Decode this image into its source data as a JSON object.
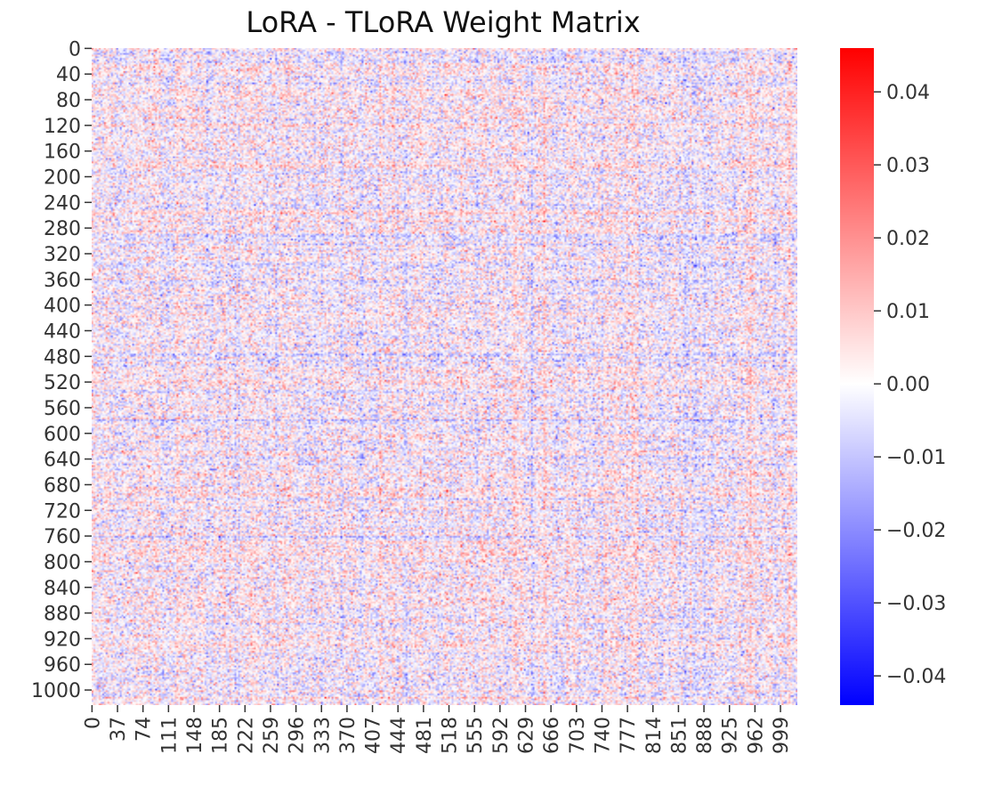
{
  "chart_data": {
    "type": "heatmap",
    "title": "LoRA - TLoRA Weight Matrix",
    "xlabel": "",
    "ylabel": "",
    "rows": 1024,
    "cols": 1024,
    "value_description": "dense noise-like matrix of small weight differences, mostly within about -0.02 to 0.02",
    "yticks": [
      "0",
      "40",
      "80",
      "120",
      "160",
      "200",
      "240",
      "280",
      "320",
      "360",
      "400",
      "440",
      "480",
      "520",
      "560",
      "600",
      "640",
      "680",
      "720",
      "760",
      "800",
      "840",
      "880",
      "920",
      "960",
      "1000"
    ],
    "xticks": [
      "0",
      "37",
      "74",
      "111",
      "148",
      "185",
      "222",
      "259",
      "296",
      "333",
      "370",
      "407",
      "444",
      "481",
      "518",
      "555",
      "592",
      "629",
      "666",
      "703",
      "740",
      "777",
      "814",
      "851",
      "888",
      "925",
      "962",
      "999"
    ],
    "colormap": "bwr",
    "colorbar": {
      "vmin": -0.044,
      "vmax": 0.046,
      "ticks": [
        -0.04,
        -0.03,
        -0.02,
        -0.01,
        0.0,
        0.01,
        0.02,
        0.03,
        0.04
      ],
      "tick_labels": [
        "−0.04",
        "−0.03",
        "−0.02",
        "−0.01",
        "0.00",
        "0.01",
        "0.02",
        "0.03",
        "0.04"
      ]
    },
    "colors": {
      "low": "#0000ff",
      "mid": "#ffffff",
      "high": "#ff0000"
    },
    "grid": false,
    "legend": "colorbar-right"
  }
}
